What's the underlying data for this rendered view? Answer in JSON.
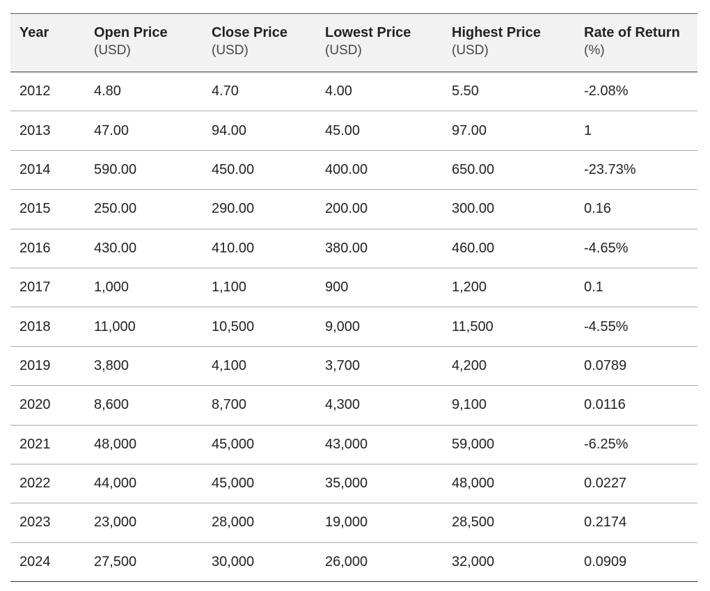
{
  "table": {
    "header": [
      {
        "title": "Year"
      },
      {
        "title": "Open Price",
        "unit": "(USD)"
      },
      {
        "title": "Close Price",
        "unit": "(USD)"
      },
      {
        "title": "Lowest Price",
        "unit": "(USD)"
      },
      {
        "title": "Highest Price",
        "unit": "(USD)"
      },
      {
        "title": "Rate of Return",
        "unit": "(%)"
      }
    ],
    "rows": [
      [
        "2012",
        "4.80",
        "4.70",
        "4.00",
        "5.50",
        "-2.08%"
      ],
      [
        "2013",
        "47.00",
        "94.00",
        "45.00",
        "97.00",
        "1"
      ],
      [
        "2014",
        "590.00",
        "450.00",
        "400.00",
        "650.00",
        "-23.73%"
      ],
      [
        "2015",
        "250.00",
        "290.00",
        "200.00",
        "300.00",
        "0.16"
      ],
      [
        "2016",
        "430.00",
        "410.00",
        "380.00",
        "460.00",
        "-4.65%"
      ],
      [
        "2017",
        "1,000",
        "1,100",
        "900",
        "1,200",
        "0.1"
      ],
      [
        "2018",
        "11,000",
        "10,500",
        "9,000",
        "11,500",
        "-4.55%"
      ],
      [
        "2019",
        "3,800",
        "4,100",
        "3,700",
        "4,200",
        "0.0789"
      ],
      [
        "2020",
        "8,600",
        "8,700",
        "4,300",
        "9,100",
        "0.0116"
      ],
      [
        "2021",
        "48,000",
        "45,000",
        "43,000",
        "59,000",
        "-6.25%"
      ],
      [
        "2022",
        "44,000",
        "45,000",
        "35,000",
        "48,000",
        "0.0227"
      ],
      [
        "2023",
        "23,000",
        "28,000",
        "19,000",
        "28,500",
        "0.2174"
      ],
      [
        "2024",
        "27,500",
        "30,000",
        "26,000",
        "32,000",
        "0.0909"
      ]
    ]
  }
}
